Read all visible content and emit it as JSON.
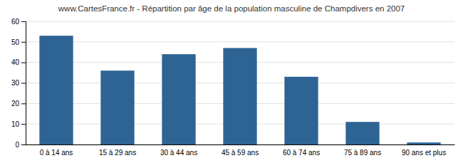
{
  "chart_data": {
    "type": "bar",
    "title": "www.CartesFrance.fr - Répartition par âge de la population masculine de Champdivers en 2007",
    "categories": [
      "0 à 14 ans",
      "15 à 29 ans",
      "30 à 44 ans",
      "45 à 59 ans",
      "60 à 74 ans",
      "75 à 89 ans",
      "90 ans et plus"
    ],
    "values": [
      53,
      36,
      44,
      47,
      33,
      11,
      1
    ],
    "color": "#2e6494",
    "ylim": [
      0,
      60
    ],
    "yticks": [
      0,
      10,
      20,
      30,
      40,
      50,
      60
    ],
    "grid": true
  }
}
